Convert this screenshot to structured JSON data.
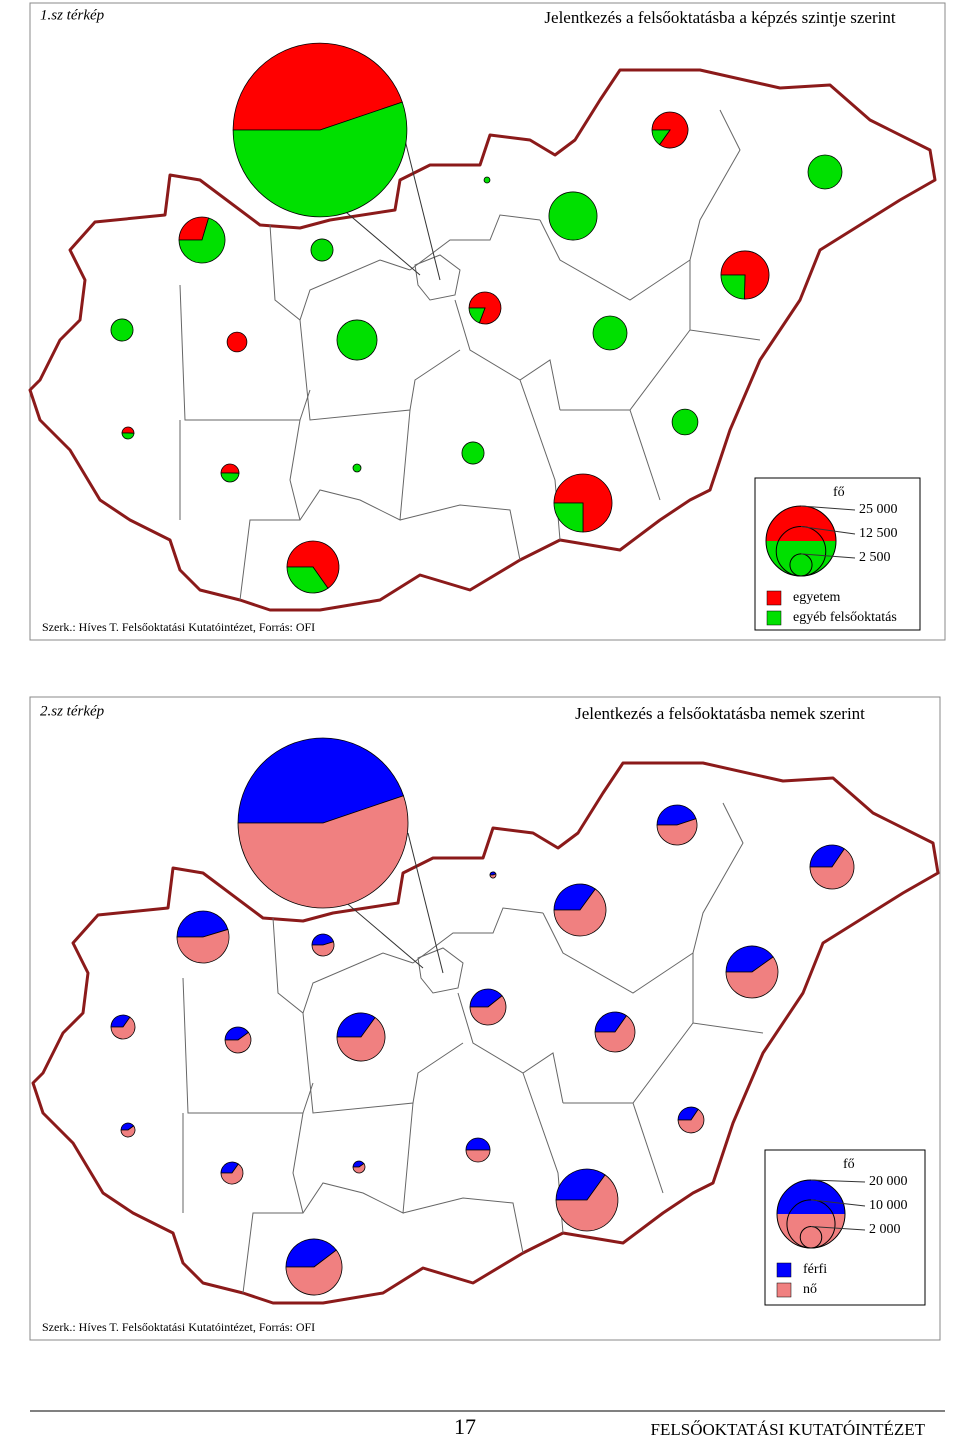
{
  "maps": [
    {
      "label": "1.sz térkép",
      "title": "Jelentkezés a felsőoktatásba a képzés szintje szerint",
      "legend": {
        "unit": "fő",
        "sizes": [
          {
            "value": 25000,
            "label": "25 000"
          },
          {
            "value": 12500,
            "label": "12 500"
          },
          {
            "value": 2500,
            "label": "2 500"
          }
        ],
        "items": [
          "egyetem",
          "egyéb felsőoktatás"
        ],
        "colors": [
          "#ff0000",
          "#00e000"
        ]
      },
      "pies": [
        [
          69000,
          85000
        ],
        [
          5600,
          1000
        ],
        [
          0,
          5900
        ],
        [
          0,
          180
        ],
        [
          0,
          11800
        ],
        [
          3200,
          7600
        ],
        [
          0,
          2500
        ],
        [
          8900,
          2900
        ],
        [
          4200,
          1000
        ],
        [
          0,
          2500
        ],
        [
          2000,
          0
        ],
        [
          0,
          8200
        ],
        [
          0,
          5900
        ],
        [
          0,
          3400
        ],
        [
          370,
          360
        ],
        [
          0,
          2500
        ],
        [
          830,
          820
        ],
        [
          0,
          330
        ],
        [
          12900,
          4300
        ],
        [
          9000,
          4800
        ]
      ],
      "credit": "Szerk.: Híves T. Felsőoktatási Kutatóintézet,  Forrás: OFI"
    },
    {
      "label": "2.sz térkép",
      "title": "Jelentkezés a felsőoktatásba nemek szerint",
      "legend": {
        "unit": "fő",
        "sizes": [
          {
            "value": 20000,
            "label": "20 000"
          },
          {
            "value": 10000,
            "label": "10 000"
          },
          {
            "value": 2000,
            "label": "2 000"
          }
        ],
        "items": [
          "férfi",
          "nő"
        ],
        "colors": [
          "#0000ff",
          "#f08080"
        ]
      },
      "pies": [
        [
          56000,
          69000
        ],
        [
          3100,
          3800
        ],
        [
          2900,
          5500
        ],
        [
          70,
          90
        ],
        [
          4100,
          7600
        ],
        [
          5300,
          6400
        ],
        [
          950,
          1150
        ],
        [
          4700,
          7000
        ],
        [
          2200,
          3400
        ],
        [
          870,
          1630
        ],
        [
          1160,
          1740
        ],
        [
          3500,
          6500
        ],
        [
          2400,
          4500
        ],
        [
          1000,
          1900
        ],
        [
          340,
          510
        ],
        [
          1250,
          1250
        ],
        [
          730,
          1370
        ],
        [
          250,
          370
        ],
        [
          5800,
          10800
        ],
        [
          5400,
          8200
        ]
      ],
      "credit": "Szerk.: Híves T. Felsőoktatási Kutatóintézet,  Forrás: OFI"
    }
  ],
  "footer": {
    "page": "17",
    "publisher": "FELSŐOKTATÁSI KUTATÓINTÉZET"
  }
}
